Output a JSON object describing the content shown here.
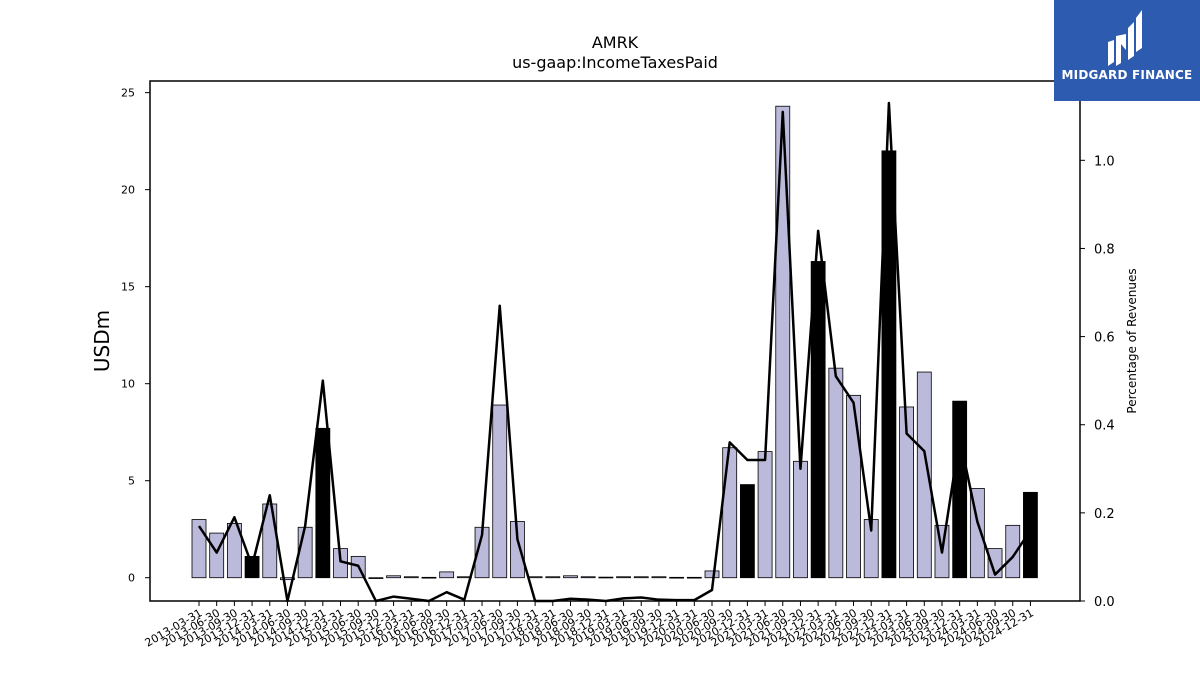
{
  "chart_data": {
    "type": "bar",
    "title": "AMRK",
    "subtitle": "us-gaap:IncomeTaxesPaid",
    "ylabel": "USDm",
    "y2label": "Percentage of Revenues",
    "ylim": [
      -1.2,
      25.6
    ],
    "y2lim": [
      0.0,
      1.18
    ],
    "yticks": [
      0,
      5,
      10,
      15,
      20,
      25
    ],
    "y2ticks": [
      "0.0",
      "0.2",
      "0.4",
      "0.6",
      "0.8",
      "1.0"
    ],
    "categories": [
      "2013-03-31",
      "2013-06-30",
      "2013-09-30",
      "2013-12-31",
      "2014-03-31",
      "2014-06-30",
      "2014-09-30",
      "2014-12-31",
      "2015-03-31",
      "2015-06-30",
      "2015-09-30",
      "2015-12-31",
      "2016-03-31",
      "2016-06-30",
      "2016-09-30",
      "2016-12-31",
      "2017-03-31",
      "2017-06-30",
      "2017-09-30",
      "2017-12-31",
      "2018-03-31",
      "2018-06-30",
      "2018-09-30",
      "2018-12-31",
      "2019-03-31",
      "2019-06-30",
      "2019-09-30",
      "2019-12-31",
      "2020-03-31",
      "2020-06-30",
      "2020-09-30",
      "2020-12-31",
      "2021-03-31",
      "2021-06-30",
      "2021-09-30",
      "2021-12-31",
      "2022-03-31",
      "2022-06-30",
      "2022-09-30",
      "2022-12-31",
      "2023-03-31",
      "2023-06-30",
      "2023-09-30",
      "2023-12-31",
      "2024-03-31",
      "2024-06-30",
      "2024-09-30",
      "2024-12-31"
    ],
    "series": [
      {
        "name": "",
        "kind": "bar",
        "values": [
          3.0,
          2.3,
          2.8,
          1.1,
          3.8,
          -0.1,
          2.6,
          7.7,
          1.5,
          1.1,
          0.0,
          0.1,
          0.05,
          0.02,
          0.3,
          0.05,
          2.6,
          8.9,
          2.9,
          0.05,
          0.05,
          0.1,
          0.05,
          0.03,
          0.05,
          0.05,
          0.05,
          0.02,
          0.02,
          0.35,
          6.7,
          4.8,
          6.5,
          24.3,
          6.0,
          16.3,
          10.8,
          9.4,
          3.0,
          22.0,
          8.8,
          10.6,
          2.7,
          9.1,
          4.6,
          1.5,
          2.7,
          4.4
        ],
        "highlight": [
          3,
          7,
          31,
          35,
          39,
          43,
          47
        ],
        "colors": {
          "fill": "#bcbada",
          "highlight_fill": "#000000",
          "edge": "#000000"
        }
      },
      {
        "name": "",
        "kind": "line",
        "axis": "right",
        "values": [
          0.17,
          0.11,
          0.19,
          0.08,
          0.24,
          0.0,
          0.17,
          0.5,
          0.09,
          0.08,
          0.0,
          0.01,
          0.005,
          0.0,
          0.02,
          0.003,
          0.15,
          0.67,
          0.14,
          0.0,
          0.0,
          0.005,
          0.003,
          0.0,
          0.006,
          0.008,
          0.003,
          0.002,
          0.002,
          0.025,
          0.36,
          0.32,
          0.32,
          1.11,
          0.3,
          0.84,
          0.51,
          0.45,
          0.16,
          1.13,
          0.38,
          0.34,
          0.11,
          0.37,
          0.18,
          0.06,
          0.1,
          0.16
        ],
        "colors": {
          "stroke": "#000000"
        }
      }
    ]
  },
  "logo": {
    "text": "MIDGARD FINANCE",
    "icon": "midgard-logo-icon",
    "colors": {
      "background": "#2d5bb0",
      "foreground": "#ffffff"
    }
  }
}
